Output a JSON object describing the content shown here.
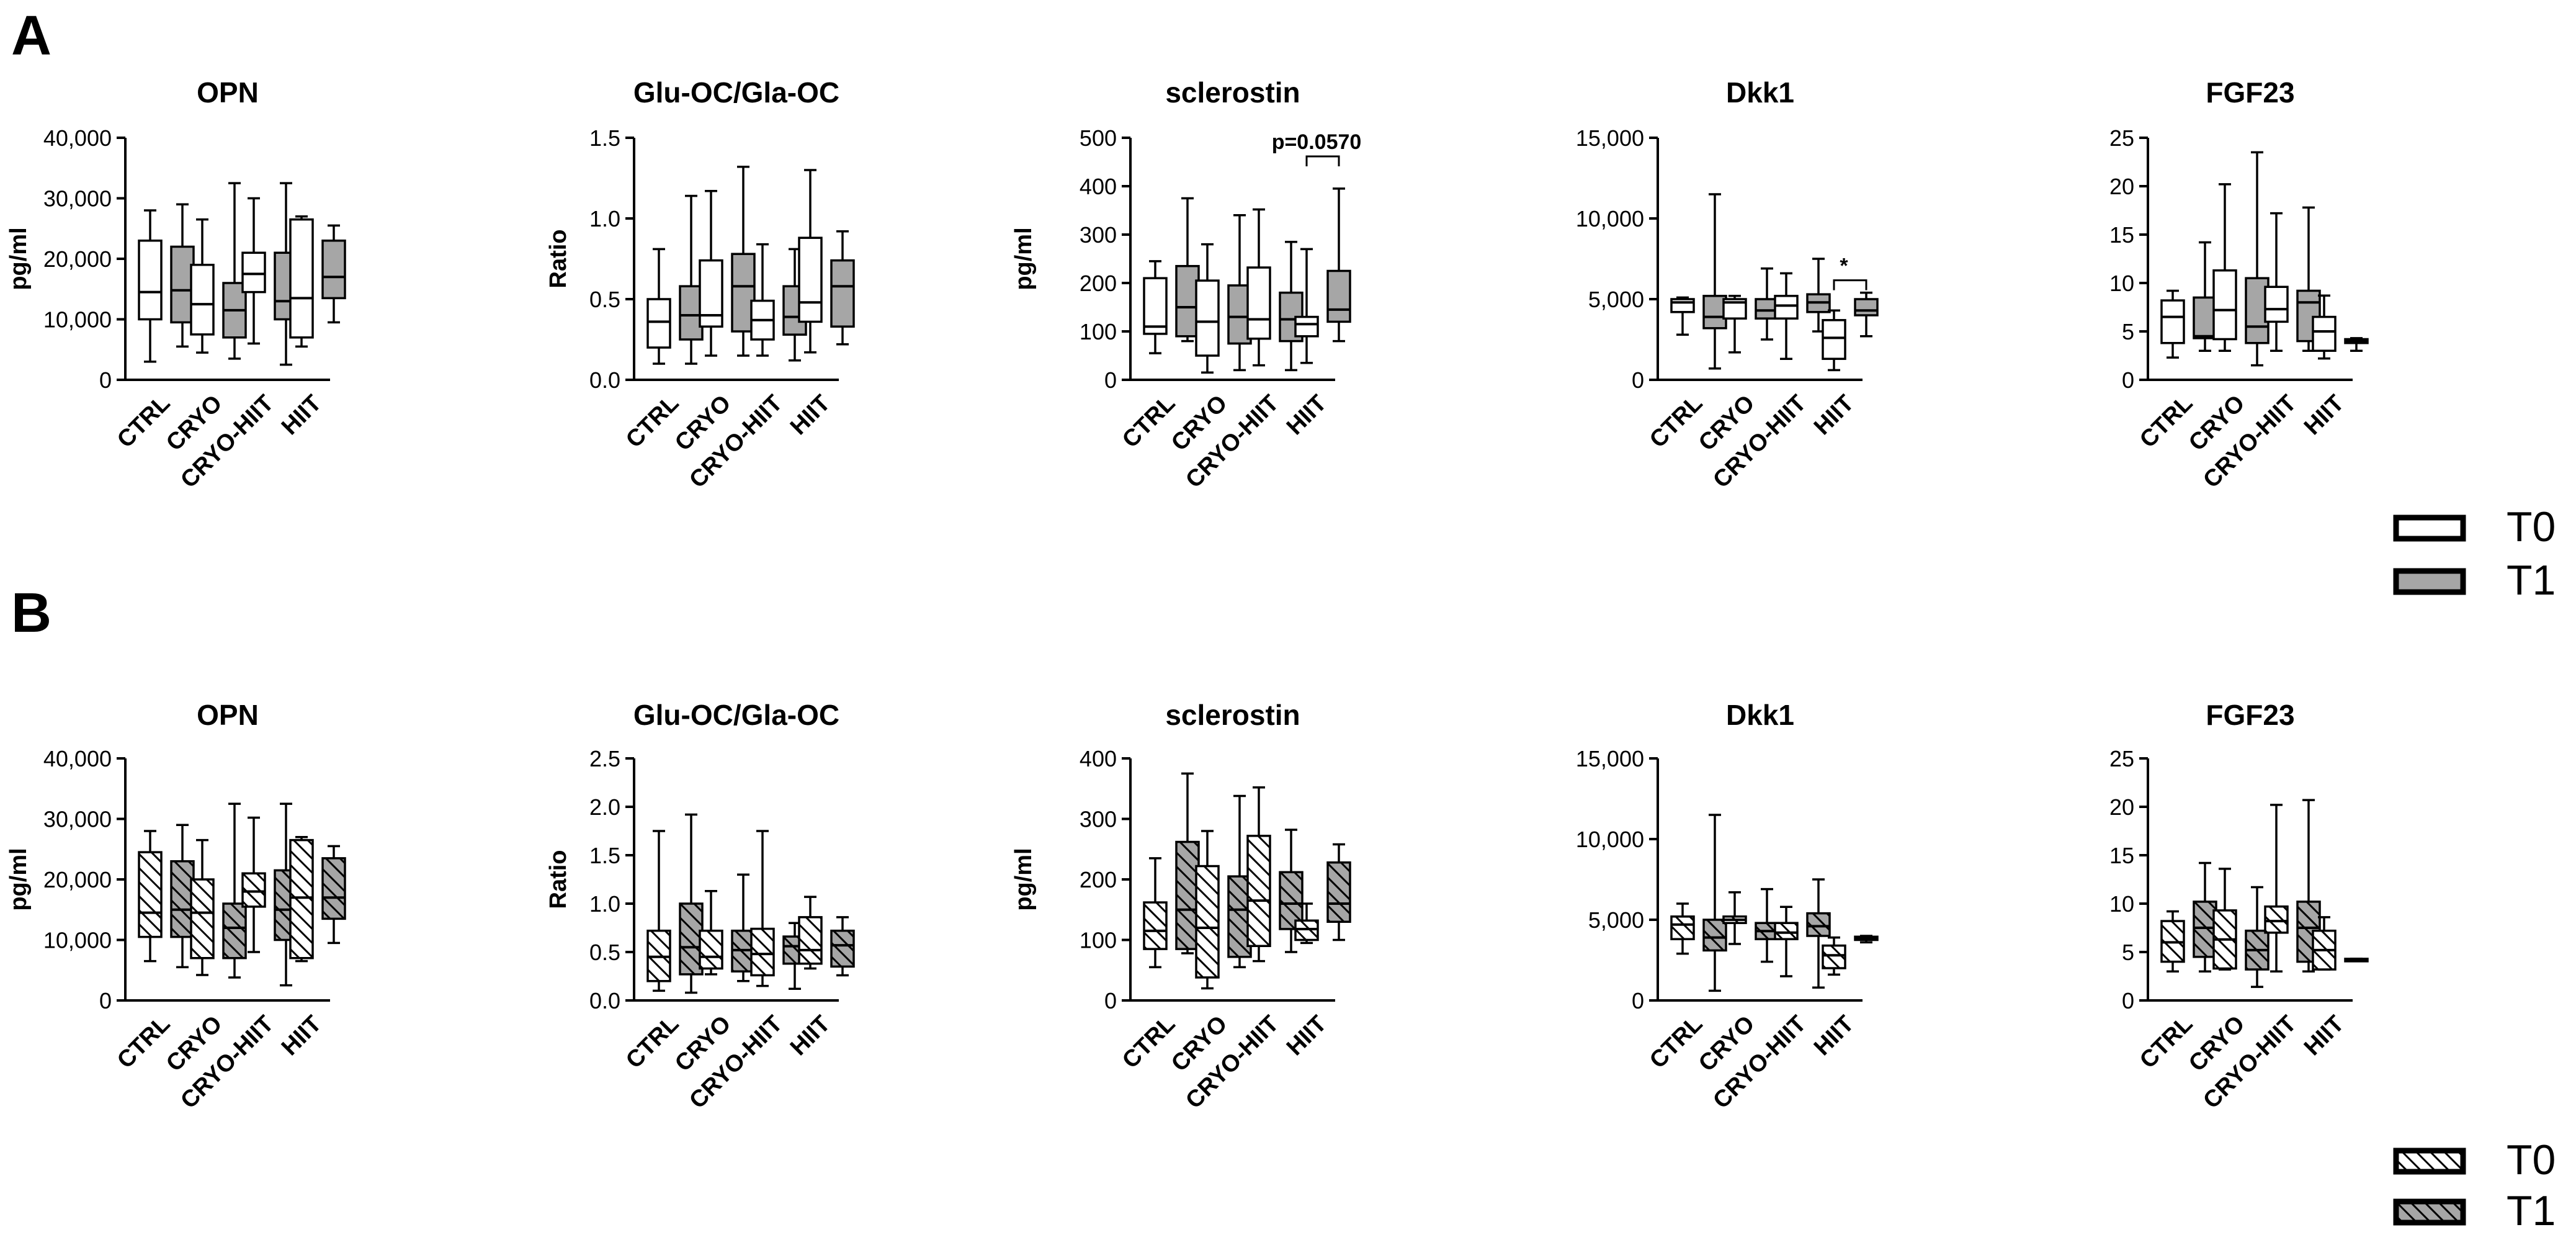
{
  "figure": {
    "panel_labels": [
      "A",
      "B"
    ],
    "legend_A": [
      {
        "label": "T0",
        "fill": "#ffffff"
      },
      {
        "label": "T1",
        "fill": "#a6a6a6"
      }
    ],
    "legend_B": [
      {
        "label": "T0",
        "fill": "hatch-white"
      },
      {
        "label": "T1",
        "fill": "hatch-gray"
      }
    ],
    "colors": {
      "t0": "#ffffff",
      "t1": "#a6a6a6",
      "stroke": "#000000"
    }
  },
  "chart_data": [
    {
      "panel": "A",
      "type": "boxplot",
      "title": "OPN",
      "ylabel": "pg/ml",
      "ylim": [
        0,
        40000
      ],
      "yticks": [
        "0",
        "10,000",
        "20,000",
        "30,000",
        "40,000"
      ],
      "categories": [
        "CTRL",
        "CRYO",
        "CRYO-HIIT",
        "HIIT"
      ],
      "series_names": [
        "T0",
        "T1"
      ],
      "boxes": [
        [
          [
            3000,
            10000,
            14500,
            23000,
            28000
          ],
          [
            5500,
            9500,
            14800,
            22000,
            29000
          ]
        ],
        [
          [
            4500,
            7500,
            12500,
            19000,
            26500
          ],
          [
            3500,
            7000,
            11500,
            16000,
            32500
          ]
        ],
        [
          [
            6000,
            14500,
            17500,
            21000,
            30000
          ],
          [
            2500,
            10000,
            13000,
            21000,
            32500
          ]
        ],
        [
          [
            5500,
            7000,
            13500,
            26500,
            27000
          ],
          [
            9500,
            13500,
            17000,
            23000,
            25500
          ]
        ]
      ],
      "annotations": []
    },
    {
      "panel": "A",
      "type": "boxplot",
      "title": "Glu-OC/Gla-OC",
      "ylabel": "Ratio",
      "ylim": [
        0,
        1.5
      ],
      "yticks": [
        "0.0",
        "0.5",
        "1.0",
        "1.5"
      ],
      "categories": [
        "CTRL",
        "CRYO",
        "CRYO-HIIT",
        "HIIT"
      ],
      "series_names": [
        "T0",
        "T1"
      ],
      "boxes": [
        [
          [
            0.1,
            0.2,
            0.36,
            0.5,
            0.81
          ],
          [
            0.1,
            0.25,
            0.4,
            0.58,
            1.14
          ]
        ],
        [
          [
            0.15,
            0.33,
            0.4,
            0.74,
            1.17
          ],
          [
            0.15,
            0.3,
            0.58,
            0.78,
            1.32
          ]
        ],
        [
          [
            0.15,
            0.25,
            0.37,
            0.49,
            0.84
          ],
          [
            0.12,
            0.28,
            0.39,
            0.58,
            0.81
          ]
        ],
        [
          [
            0.17,
            0.36,
            0.48,
            0.88,
            1.3
          ],
          [
            0.22,
            0.33,
            0.58,
            0.74,
            0.92
          ]
        ]
      ],
      "annotations": []
    },
    {
      "panel": "A",
      "type": "boxplot",
      "title": "sclerostin",
      "ylabel": "pg/ml",
      "ylim": [
        0,
        500
      ],
      "yticks": [
        "0",
        "100",
        "200",
        "300",
        "400",
        "500"
      ],
      "categories": [
        "CTRL",
        "CRYO",
        "CRYO-HIIT",
        "HIIT"
      ],
      "series_names": [
        "T0",
        "T1"
      ],
      "boxes": [
        [
          [
            55,
            95,
            110,
            210,
            245
          ],
          [
            80,
            90,
            150,
            235,
            375
          ]
        ],
        [
          [
            15,
            50,
            120,
            205,
            280
          ],
          [
            20,
            75,
            130,
            195,
            340
          ]
        ],
        [
          [
            30,
            85,
            125,
            232,
            352
          ],
          [
            20,
            80,
            125,
            180,
            285
          ]
        ],
        [
          [
            35,
            90,
            115,
            130,
            270
          ],
          [
            80,
            120,
            145,
            225,
            395
          ]
        ]
      ],
      "annotations": [
        {
          "text": "p=0.0570",
          "category": 3
        }
      ]
    },
    {
      "panel": "A",
      "type": "boxplot",
      "title": "Dkk1",
      "ylabel": "",
      "ylim": [
        0,
        15000
      ],
      "yticks": [
        "0",
        "5,000",
        "10,000",
        "15,000"
      ],
      "categories": [
        "CTRL",
        "CRYO",
        "CRYO-HIIT",
        "HIIT"
      ],
      "series_names": [
        "T0",
        "T1"
      ],
      "boxes": [
        [
          [
            2800,
            4200,
            4800,
            5000,
            5100
          ],
          [
            700,
            3200,
            3900,
            5200,
            11500
          ]
        ],
        [
          [
            1700,
            3800,
            4800,
            5000,
            5200
          ],
          [
            2500,
            3800,
            4300,
            5000,
            6900
          ]
        ],
        [
          [
            1300,
            3800,
            4600,
            5200,
            6600
          ],
          [
            3000,
            4200,
            4800,
            5300,
            7500
          ]
        ],
        [
          [
            600,
            1300,
            2600,
            3700,
            4300
          ],
          [
            2700,
            4000,
            4300,
            5000,
            5400
          ]
        ]
      ],
      "annotations": [
        {
          "text": "*",
          "category": 3
        }
      ]
    },
    {
      "panel": "A",
      "type": "boxplot",
      "title": "FGF23",
      "ylabel": "",
      "ylim": [
        0,
        25
      ],
      "yticks": [
        "0",
        "5",
        "10",
        "15",
        "20",
        "25"
      ],
      "categories": [
        "CTRL",
        "CRYO",
        "CRYO-HIIT",
        "HIIT"
      ],
      "series_names": [
        "T0",
        "T1"
      ],
      "boxes": [
        [
          [
            2.3,
            3.8,
            6.5,
            8.2,
            9.2
          ],
          [
            3,
            4.3,
            4.5,
            8.5,
            14.2
          ]
        ],
        [
          [
            3,
            4.2,
            7.2,
            11.3,
            20.2
          ],
          [
            1.5,
            3.8,
            5.5,
            10.5,
            23.5
          ]
        ],
        [
          [
            3,
            6,
            7.3,
            9.6,
            17.2
          ],
          [
            3,
            4,
            8,
            9.2,
            17.8
          ]
        ],
        [
          [
            2.2,
            3,
            5,
            6.5,
            8.7
          ],
          [
            3,
            3.8,
            4,
            4.2,
            4.3
          ]
        ]
      ],
      "annotations": []
    },
    {
      "panel": "B",
      "type": "boxplot",
      "title": "OPN",
      "ylabel": "pg/ml",
      "ylim": [
        0,
        40000
      ],
      "yticks": [
        "0",
        "10,000",
        "20,000",
        "30,000",
        "40,000"
      ],
      "categories": [
        "CTRL",
        "CRYO",
        "CRYO-HIIT",
        "HIIT"
      ],
      "series_names": [
        "T0",
        "T1"
      ],
      "boxes": [
        [
          [
            6500,
            10500,
            14500,
            24500,
            28000
          ],
          [
            5500,
            10500,
            15000,
            23000,
            29000
          ]
        ],
        [
          [
            4200,
            7000,
            14500,
            20000,
            26500
          ],
          [
            3800,
            7000,
            12000,
            16000,
            32500
          ]
        ],
        [
          [
            8000,
            15500,
            18000,
            21000,
            30200
          ],
          [
            2500,
            10000,
            15000,
            21500,
            32500
          ]
        ],
        [
          [
            6500,
            7000,
            17000,
            26500,
            27000
          ],
          [
            9500,
            13500,
            17000,
            23500,
            25500
          ]
        ]
      ],
      "annotations": []
    },
    {
      "panel": "B",
      "type": "boxplot",
      "title": "Glu-OC/Gla-OC",
      "ylabel": "Ratio",
      "ylim": [
        0,
        2.5
      ],
      "yticks": [
        "0.0",
        "0.5",
        "1.0",
        "1.5",
        "2.0",
        "2.5"
      ],
      "categories": [
        "CTRL",
        "CRYO",
        "CRYO-HIIT",
        "HIIT"
      ],
      "series_names": [
        "T0",
        "T1"
      ],
      "boxes": [
        [
          [
            0.1,
            0.2,
            0.45,
            0.72,
            1.75
          ],
          [
            0.08,
            0.27,
            0.55,
            1.0,
            1.92
          ]
        ],
        [
          [
            0.27,
            0.33,
            0.45,
            0.72,
            1.13
          ],
          [
            0.2,
            0.3,
            0.52,
            0.72,
            1.3
          ]
        ],
        [
          [
            0.15,
            0.26,
            0.48,
            0.74,
            1.75
          ],
          [
            0.12,
            0.38,
            0.56,
            0.66,
            0.8
          ]
        ],
        [
          [
            0.33,
            0.38,
            0.52,
            0.86,
            1.07
          ],
          [
            0.26,
            0.35,
            0.57,
            0.72,
            0.86
          ]
        ]
      ],
      "annotations": []
    },
    {
      "panel": "B",
      "type": "boxplot",
      "title": "sclerostin",
      "ylabel": "pg/ml",
      "ylim": [
        0,
        400
      ],
      "yticks": [
        "0",
        "100",
        "200",
        "300",
        "400"
      ],
      "categories": [
        "CTRL",
        "CRYO",
        "CRYO-HIIT",
        "HIIT"
      ],
      "series_names": [
        "T0",
        "T1"
      ],
      "boxes": [
        [
          [
            55,
            85,
            115,
            162,
            235
          ],
          [
            78,
            85,
            150,
            262,
            375
          ]
        ],
        [
          [
            20,
            38,
            120,
            222,
            280
          ],
          [
            55,
            72,
            150,
            205,
            338
          ]
        ],
        [
          [
            65,
            90,
            165,
            272,
            352
          ],
          [
            80,
            118,
            160,
            212,
            282
          ]
        ],
        [
          [
            95,
            100,
            118,
            132,
            160
          ],
          [
            100,
            130,
            160,
            228,
            258
          ]
        ]
      ],
      "annotations": []
    },
    {
      "panel": "B",
      "type": "boxplot",
      "title": "Dkk1",
      "ylabel": "",
      "ylim": [
        0,
        15000
      ],
      "yticks": [
        "0",
        "5,000",
        "10,000",
        "15,000"
      ],
      "categories": [
        "CTRL",
        "CRYO",
        "CRYO-HIIT",
        "HIIT"
      ],
      "series_names": [
        "T0",
        "T1"
      ],
      "boxes": [
        [
          [
            2900,
            3800,
            4700,
            5200,
            6000
          ],
          [
            600,
            3100,
            3900,
            5000,
            11500
          ]
        ],
        [
          [
            3500,
            4800,
            5000,
            5200,
            6700
          ],
          [
            2400,
            3800,
            4300,
            4800,
            6900
          ]
        ],
        [
          [
            1500,
            3800,
            4200,
            4800,
            5800
          ],
          [
            800,
            4000,
            4600,
            5400,
            7500
          ]
        ],
        [
          [
            1600,
            2000,
            2800,
            3400,
            3900
          ],
          [
            3600,
            3750,
            3850,
            3950,
            4000
          ]
        ]
      ],
      "annotations": []
    },
    {
      "panel": "B",
      "type": "boxplot",
      "title": "FGF23",
      "ylabel": "",
      "ylim": [
        0,
        25
      ],
      "yticks": [
        "0",
        "5",
        "10",
        "15",
        "20",
        "25"
      ],
      "categories": [
        "CTRL",
        "CRYO",
        "CRYO-HIIT",
        "HIIT"
      ],
      "series_names": [
        "T0",
        "T1"
      ],
      "boxes": [
        [
          [
            3,
            4,
            6,
            8.2,
            9.2
          ],
          [
            3,
            4.5,
            7.5,
            10.2,
            14.2
          ]
        ],
        [
          [
            3.2,
            3.3,
            6.3,
            9.3,
            13.6
          ],
          [
            1.4,
            3.2,
            5.2,
            7.2,
            11.7
          ]
        ],
        [
          [
            3,
            7,
            8.2,
            9.7,
            20.2
          ],
          [
            3,
            4,
            7.5,
            10.2,
            20.7
          ]
        ],
        [
          [
            3.2,
            3.2,
            5.2,
            7.2,
            8.6
          ],
          [
            4.1,
            4.1,
            4.2,
            4.3,
            4.3
          ]
        ]
      ],
      "annotations": []
    }
  ]
}
